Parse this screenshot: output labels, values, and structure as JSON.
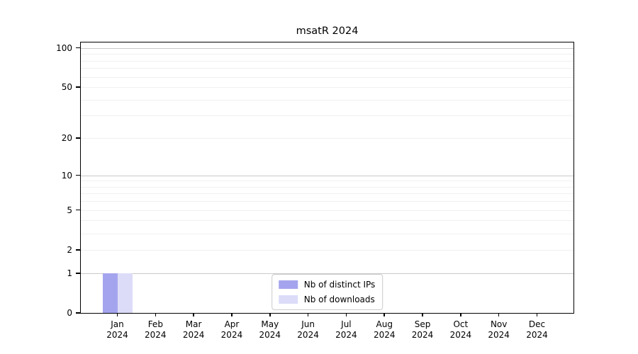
{
  "chart_data": {
    "type": "bar",
    "title": "msatR 2024",
    "xlabel": "",
    "ylabel": "",
    "yscale": "log1p",
    "ylim": [
      0,
      110
    ],
    "grid": true,
    "categories": [
      "Jan",
      "Feb",
      "Mar",
      "Apr",
      "May",
      "Jun",
      "Jul",
      "Aug",
      "Sep",
      "Oct",
      "Nov",
      "Dec"
    ],
    "x_year_label": "2024",
    "y_major_ticks": [
      0,
      1,
      2,
      5,
      10,
      20,
      50,
      100
    ],
    "y_major_gridlines": [
      1,
      10,
      100
    ],
    "y_minor_gridlines": [
      2,
      3,
      4,
      5,
      6,
      7,
      8,
      9,
      20,
      30,
      40,
      50,
      60,
      70,
      80,
      90
    ],
    "series": [
      {
        "name": "Nb of distinct IPs",
        "color": "#a4a4ee",
        "values": [
          1,
          0,
          0,
          0,
          0,
          0,
          0,
          0,
          0,
          0,
          0,
          0
        ]
      },
      {
        "name": "Nb of downloads",
        "color": "#dcdcf8",
        "values": [
          1,
          0,
          0,
          0,
          0,
          0,
          0,
          0,
          0,
          0,
          0,
          0
        ]
      }
    ],
    "legend": {
      "position": "lower center",
      "entries": [
        "Nb of distinct IPs",
        "Nb of downloads"
      ]
    },
    "colors": {
      "major_grid": "#c9c9c9",
      "minor_grid": "#f0f0f0",
      "axis": "#000000",
      "background": "#ffffff"
    }
  }
}
